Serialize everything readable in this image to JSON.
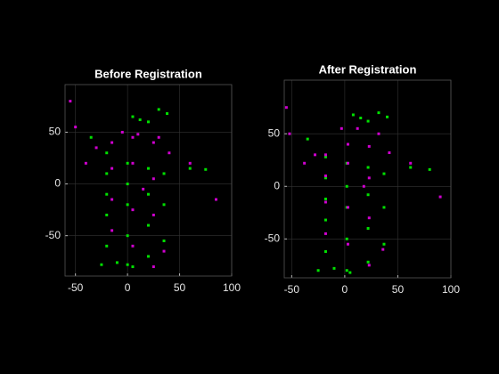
{
  "chart_data": [
    {
      "type": "scatter",
      "title": "Before Registration",
      "xlim": [
        -60,
        100
      ],
      "ylim": [
        -89,
        96
      ],
      "xticks": [
        -50,
        0,
        50,
        100
      ],
      "yticks": [
        -50,
        0,
        50
      ],
      "grid": true,
      "series": [
        {
          "color": "#00e000",
          "x": [
            -20,
            -20,
            -20,
            -20,
            -20,
            0,
            0,
            0,
            0,
            0,
            20,
            20,
            20,
            20,
            35,
            35,
            35,
            5,
            12,
            20,
            30,
            38,
            60,
            75,
            -25,
            -10,
            5,
            -35
          ],
          "values": [
            30,
            10,
            -10,
            -30,
            -60,
            20,
            0,
            -20,
            -50,
            -78,
            15,
            -10,
            -40,
            -70,
            10,
            -20,
            -55,
            65,
            62,
            60,
            72,
            68,
            15,
            14,
            -78,
            -76,
            -80,
            45
          ]
        },
        {
          "color": "#d000d0",
          "x": [
            -30,
            -15,
            -15,
            -15,
            -15,
            5,
            5,
            5,
            5,
            25,
            25,
            25,
            25,
            -5,
            10,
            30,
            40,
            -40,
            -50,
            -55,
            15,
            35,
            85,
            60
          ],
          "values": [
            35,
            40,
            15,
            -15,
            -45,
            45,
            20,
            -25,
            -60,
            40,
            5,
            -30,
            -80,
            50,
            48,
            45,
            30,
            20,
            55,
            80,
            -5,
            -65,
            -15,
            20
          ]
        }
      ]
    },
    {
      "type": "scatter",
      "title": "After Registration",
      "xlim": [
        -57,
        100
      ],
      "ylim": [
        -87,
        101
      ],
      "xticks": [
        -50,
        0,
        50,
        100
      ],
      "yticks": [
        -50,
        0,
        50
      ],
      "grid": true,
      "series": [
        {
          "color": "#00e000",
          "x": [
            -18,
            -18,
            -18,
            -18,
            -18,
            2,
            2,
            2,
            2,
            2,
            22,
            22,
            22,
            22,
            37,
            37,
            37,
            8,
            15,
            22,
            32,
            40,
            62,
            80,
            -25,
            -10,
            5,
            -35
          ],
          "values": [
            28,
            8,
            -12,
            -32,
            -62,
            22,
            0,
            -20,
            -50,
            -80,
            18,
            -8,
            -40,
            -72,
            12,
            -20,
            -55,
            68,
            65,
            62,
            70,
            66,
            18,
            16,
            -80,
            -78,
            -82,
            45
          ]
        },
        {
          "color": "#d000d0",
          "x": [
            -28,
            -18,
            -18,
            -18,
            -18,
            3,
            3,
            3,
            3,
            23,
            23,
            23,
            23,
            -3,
            12,
            32,
            42,
            -38,
            -52,
            -55,
            18,
            36,
            90,
            62
          ],
          "values": [
            30,
            30,
            10,
            -15,
            -45,
            40,
            22,
            -20,
            -55,
            38,
            8,
            -30,
            -75,
            55,
            55,
            50,
            32,
            22,
            50,
            75,
            0,
            -60,
            -10,
            22
          ]
        }
      ]
    }
  ]
}
